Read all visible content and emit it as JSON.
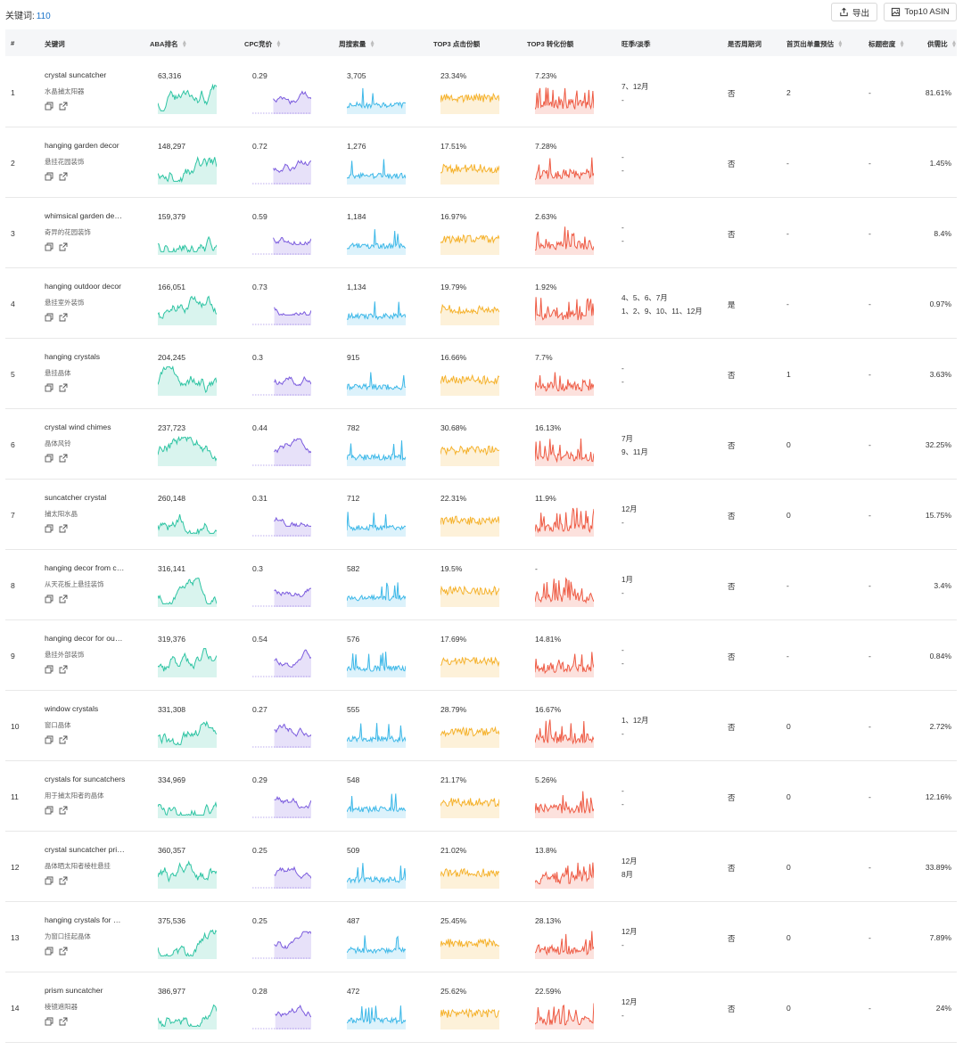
{
  "toolbar": {
    "kw_label": "关键词:",
    "kw_count": "110",
    "export_label": "导出",
    "asin_label": "Top10 ASIN"
  },
  "headers": [
    "#",
    "关键词",
    "ABA排名",
    "CPC竞价",
    "周搜索量",
    "TOP3 点击份额",
    "TOP3 转化份额",
    "旺季/淡季",
    "是否周期词",
    "首页出单量预估",
    "标题密度",
    "供需比"
  ],
  "colors": {
    "aba": "#2ec4a3",
    "cpc": "#7b5bde",
    "search": "#3db8e8",
    "click": "#f5b22d",
    "conv": "#ee5a43",
    "link": "#1a73c9"
  },
  "rows": [
    {
      "idx": "1",
      "en": "crystal suncatcher",
      "cn": "水晶捕太阳器",
      "aba": "63,316",
      "cpc": "0.29",
      "search": "3,705",
      "click": "23.34%",
      "conv": "7.23%",
      "peak1": "7、12月",
      "peak2": "-",
      "cyc": "否",
      "first": "2",
      "dens": "-",
      "ratio": "81.61%"
    },
    {
      "idx": "2",
      "en": "hanging garden decor",
      "cn": "悬挂花园装饰",
      "aba": "148,297",
      "cpc": "0.72",
      "search": "1,276",
      "click": "17.51%",
      "conv": "7.28%",
      "peak1": "-",
      "peak2": "-",
      "cyc": "否",
      "first": "-",
      "dens": "-",
      "ratio": "1.45%"
    },
    {
      "idx": "3",
      "en": "whimsical garden de…",
      "cn": "奇异的花园装饰",
      "aba": "159,379",
      "cpc": "0.59",
      "search": "1,184",
      "click": "16.97%",
      "conv": "2.63%",
      "peak1": "-",
      "peak2": "-",
      "cyc": "否",
      "first": "-",
      "dens": "-",
      "ratio": "8.4%"
    },
    {
      "idx": "4",
      "en": "hanging outdoor decor",
      "cn": "悬挂室外装饰",
      "aba": "166,051",
      "cpc": "0.73",
      "search": "1,134",
      "click": "19.79%",
      "conv": "1.92%",
      "peak1": "4、5、6、7月",
      "peak2": "1、2、9、10、11、12月",
      "cyc": "是",
      "first": "-",
      "dens": "-",
      "ratio": "0.97%"
    },
    {
      "idx": "5",
      "en": "hanging crystals",
      "cn": "悬挂晶体",
      "aba": "204,245",
      "cpc": "0.3",
      "search": "915",
      "click": "16.66%",
      "conv": "7.7%",
      "peak1": "-",
      "peak2": "-",
      "cyc": "否",
      "first": "1",
      "dens": "-",
      "ratio": "3.63%"
    },
    {
      "idx": "6",
      "en": "crystal wind chimes",
      "cn": "晶体风铃",
      "aba": "237,723",
      "cpc": "0.44",
      "search": "782",
      "click": "30.68%",
      "conv": "16.13%",
      "peak1": "7月",
      "peak2": "9、11月",
      "cyc": "否",
      "first": "0",
      "dens": "-",
      "ratio": "32.25%"
    },
    {
      "idx": "7",
      "en": "suncatcher crystal",
      "cn": "捕太阳水晶",
      "aba": "260,148",
      "cpc": "0.31",
      "search": "712",
      "click": "22.31%",
      "conv": "11.9%",
      "peak1": "12月",
      "peak2": "-",
      "cyc": "否",
      "first": "0",
      "dens": "-",
      "ratio": "15.75%"
    },
    {
      "idx": "8",
      "en": "hanging decor from c…",
      "cn": "从天花板上悬挂装饰",
      "aba": "316,141",
      "cpc": "0.3",
      "search": "582",
      "click": "19.5%",
      "conv": "-",
      "peak1": "1月",
      "peak2": "-",
      "cyc": "否",
      "first": "-",
      "dens": "-",
      "ratio": "3.4%"
    },
    {
      "idx": "9",
      "en": "hanging decor for ou…",
      "cn": "悬挂外部装饰",
      "aba": "319,376",
      "cpc": "0.54",
      "search": "576",
      "click": "17.69%",
      "conv": "14.81%",
      "peak1": "-",
      "peak2": "-",
      "cyc": "否",
      "first": "-",
      "dens": "-",
      "ratio": "0.84%"
    },
    {
      "idx": "10",
      "en": "window crystals",
      "cn": "窗口晶体",
      "aba": "331,308",
      "cpc": "0.27",
      "search": "555",
      "click": "28.79%",
      "conv": "16.67%",
      "peak1": "1、12月",
      "peak2": "-",
      "cyc": "否",
      "first": "0",
      "dens": "-",
      "ratio": "2.72%"
    },
    {
      "idx": "11",
      "en": "crystals for suncatchers",
      "cn": "用于捕太阳者的晶体",
      "aba": "334,969",
      "cpc": "0.29",
      "search": "548",
      "click": "21.17%",
      "conv": "5.26%",
      "peak1": "-",
      "peak2": "-",
      "cyc": "否",
      "first": "0",
      "dens": "-",
      "ratio": "12.16%"
    },
    {
      "idx": "12",
      "en": "crystal suncatcher pri…",
      "cn": "晶体晒太阳者棱柱悬挂",
      "aba": "360,357",
      "cpc": "0.25",
      "search": "509",
      "click": "21.02%",
      "conv": "13.8%",
      "peak1": "12月",
      "peak2": "8月",
      "cyc": "否",
      "first": "0",
      "dens": "-",
      "ratio": "33.89%"
    },
    {
      "idx": "13",
      "en": "hanging crystals for …",
      "cn": "为窗口挂起晶体",
      "aba": "375,536",
      "cpc": "0.25",
      "search": "487",
      "click": "25.45%",
      "conv": "28.13%",
      "peak1": "12月",
      "peak2": "-",
      "cyc": "否",
      "first": "0",
      "dens": "-",
      "ratio": "7.89%"
    },
    {
      "idx": "14",
      "en": "prism suncatcher",
      "cn": "棱镜遮阳器",
      "aba": "386,977",
      "cpc": "0.28",
      "search": "472",
      "click": "25.62%",
      "conv": "22.59%",
      "peak1": "12月",
      "peak2": "-",
      "cyc": "否",
      "first": "0",
      "dens": "-",
      "ratio": "24%"
    }
  ]
}
